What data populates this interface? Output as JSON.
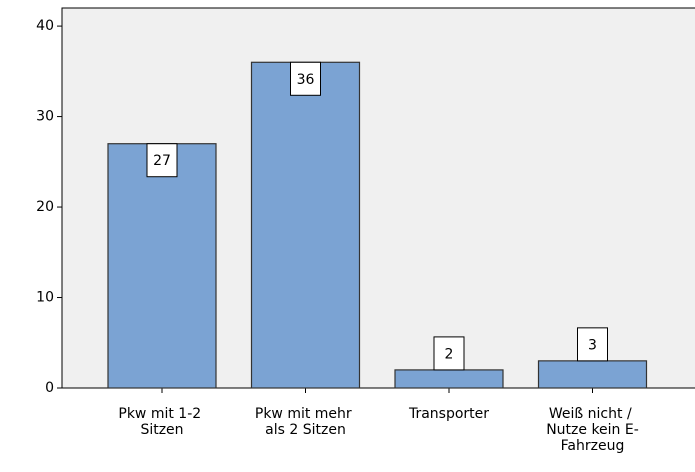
{
  "chart_data": {
    "type": "bar",
    "categories": [
      "Pkw mit 1-2 Sitzen",
      "Pkw mit mehr als 2 Sitzen",
      "Transporter",
      "Weiß nicht / Nutze kein E-Fahrzeug"
    ],
    "values": [
      27,
      36,
      2,
      3
    ],
    "color": "#7ba3d3",
    "ylim": [
      0,
      42
    ],
    "yticks": [
      0,
      10,
      20,
      30,
      40
    ],
    "grid": false
  }
}
